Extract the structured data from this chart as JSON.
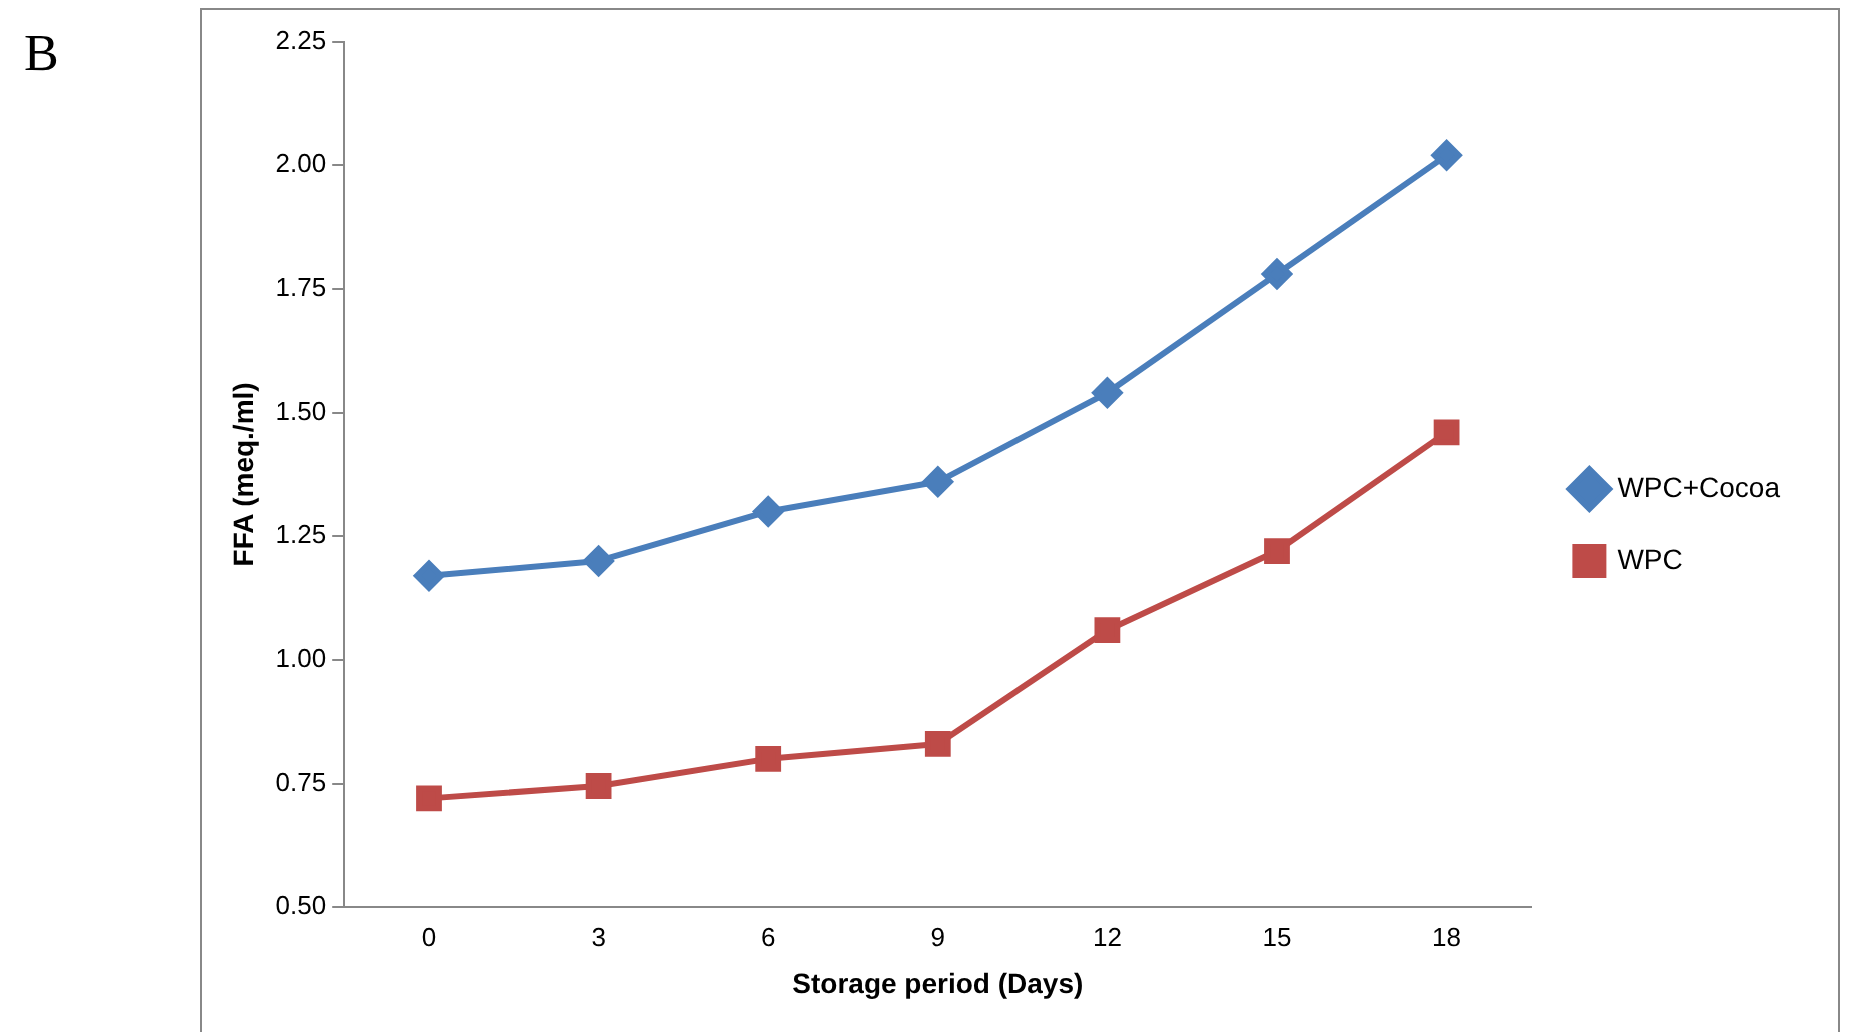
{
  "chart_data": {
    "type": "line",
    "annotations": [
      "B"
    ],
    "xlabel": "Storage period (Days)",
    "ylabel": "FFA (meq./ml)",
    "categories": [
      "0",
      "3",
      "6",
      "9",
      "12",
      "15",
      "18"
    ],
    "series": [
      {
        "name": "WPC+Cocoa",
        "color": "#4a7ebb",
        "marker": "diamond",
        "values": [
          1.17,
          1.2,
          1.3,
          1.36,
          1.54,
          1.78,
          2.02
        ]
      },
      {
        "name": "WPC",
        "color": "#be4b48",
        "marker": "square",
        "values": [
          0.72,
          0.745,
          0.8,
          0.83,
          1.06,
          1.22,
          1.46
        ]
      }
    ],
    "ylim": [
      0.5,
      2.25
    ],
    "yticks": [
      {
        "value": 0.5,
        "label": "0.50"
      },
      {
        "value": 0.75,
        "label": "0.75"
      },
      {
        "value": 1,
        "label": "1.00"
      },
      {
        "value": 1.25,
        "label": "1.25"
      },
      {
        "value": 1.5,
        "label": "1.50"
      },
      {
        "value": 1.75,
        "label": "1.75"
      },
      {
        "value": 2,
        "label": "2.00"
      },
      {
        "value": 2.25,
        "label": "2.25"
      }
    ],
    "grid": false,
    "legend": "right",
    "line_style": "solid"
  }
}
